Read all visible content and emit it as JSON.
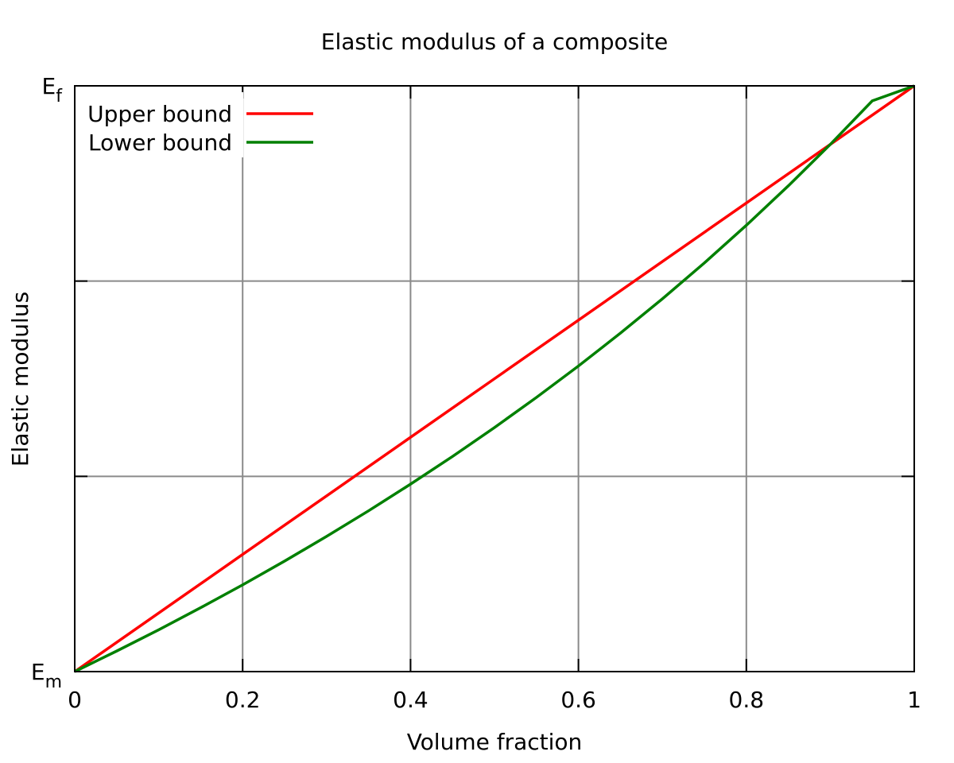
{
  "chart_data": {
    "type": "line",
    "title": "Elastic modulus of a composite",
    "xlabel": "Volume fraction",
    "ylabel": "Elastic modulus",
    "xlim": [
      0,
      1
    ],
    "ylim": [
      0,
      1
    ],
    "grid": true,
    "legend_position": "top-left",
    "x_ticks": [
      {
        "value": 0,
        "label": "0"
      },
      {
        "value": 0.2,
        "label": "0.2"
      },
      {
        "value": 0.4,
        "label": "0.4"
      },
      {
        "value": 0.6,
        "label": "0.6"
      },
      {
        "value": 0.8,
        "label": "0.8"
      },
      {
        "value": 1,
        "label": "1"
      }
    ],
    "y_ticks": [
      {
        "value": 0,
        "label_main": "E",
        "label_sub": "m"
      },
      {
        "value": 0.3333,
        "label_main": "",
        "label_sub": ""
      },
      {
        "value": 0.6667,
        "label_main": "",
        "label_sub": ""
      },
      {
        "value": 1,
        "label_main": "E",
        "label_sub": "f"
      }
    ],
    "series": [
      {
        "name": "Upper bound",
        "color": "#ff0000",
        "x": [
          0,
          0.1,
          0.2,
          0.3,
          0.4,
          0.5,
          0.6,
          0.7,
          0.8,
          0.9,
          1.0
        ],
        "y": [
          0,
          0.1,
          0.2,
          0.3,
          0.4,
          0.5,
          0.6,
          0.7,
          0.8,
          0.9,
          1.0
        ]
      },
      {
        "name": "Lower bound",
        "color": "#008000",
        "x": [
          0,
          0.05,
          0.1,
          0.15,
          0.2,
          0.25,
          0.3,
          0.35,
          0.4,
          0.45,
          0.5,
          0.55,
          0.6,
          0.65,
          0.7,
          0.75,
          0.8,
          0.85,
          0.9,
          0.95,
          1.0
        ],
        "y": [
          0,
          0.0351,
          0.0714,
          0.1091,
          0.1481,
          0.1887,
          0.2308,
          0.2745,
          0.32,
          0.3673,
          0.4167,
          0.4681,
          0.5217,
          0.5778,
          0.6364,
          0.6977,
          0.7619,
          0.8293,
          0.9,
          0.9744,
          1.0
        ]
      }
    ]
  }
}
